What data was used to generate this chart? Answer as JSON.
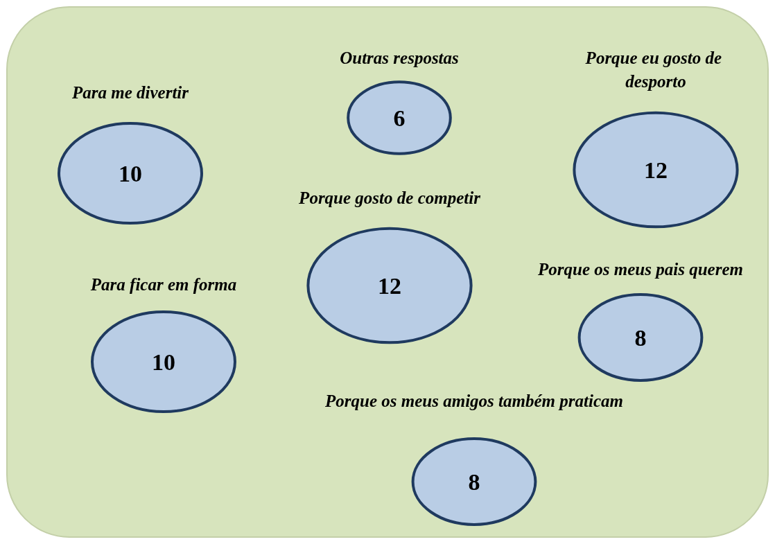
{
  "chart_data": {
    "type": "other",
    "categories": [
      "Para me divertir",
      "Outras respostas",
      "Porque eu gosto de desporto",
      "Porque gosto de competir",
      "Para ficar em forma",
      "Porque os meus pais querem",
      "Porque os meus amigos também praticam"
    ],
    "values": [
      10,
      6,
      12,
      12,
      10,
      8,
      8
    ],
    "color": "#b9cde5",
    "data_labels": true
  }
}
